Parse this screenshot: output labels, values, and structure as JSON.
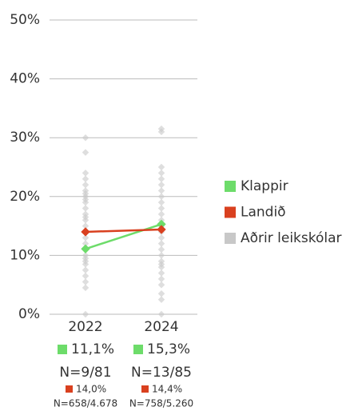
{
  "chart_data": {
    "type": "line",
    "categories": [
      "2022",
      "2024"
    ],
    "ylim": [
      0,
      50
    ],
    "yticks": [
      {
        "value": 0,
        "label": "0%"
      },
      {
        "value": 10,
        "label": "10%"
      },
      {
        "value": 20,
        "label": "20%"
      },
      {
        "value": 30,
        "label": "30%"
      },
      {
        "value": 40,
        "label": "40%"
      },
      {
        "value": 50,
        "label": "50%"
      }
    ],
    "grid": true,
    "legend": "right",
    "series": [
      {
        "name": "Klappir",
        "color": "#6ddc6a",
        "values": [
          11.1,
          15.3
        ],
        "value_labels": [
          "11,1%",
          "15,3%"
        ],
        "n_labels": [
          "N=9/81",
          "N=13/85"
        ]
      },
      {
        "name": "Landið",
        "color": "#d9401f",
        "values": [
          14.0,
          14.4
        ],
        "value_labels": [
          "14,0%",
          "14,4%"
        ],
        "n_labels": [
          "N=658/4.678",
          "N=758/5.260"
        ]
      },
      {
        "name": "Aðrir leikskólar",
        "color": "#c8c8c8",
        "type": "scatter",
        "values": [
          [
            0,
            4.5,
            5.5,
            6.5,
            7.5,
            8.5,
            9,
            9.5,
            10,
            11,
            12,
            13,
            14,
            15,
            16,
            16.5,
            17,
            18,
            19,
            19.5,
            20,
            20.5,
            21,
            22,
            23,
            24,
            27.5,
            30
          ],
          [
            0,
            2.5,
            3.5,
            5,
            6,
            7,
            8,
            8.5,
            9,
            10,
            11,
            12,
            13,
            14,
            15,
            16,
            17,
            18,
            19,
            20,
            21,
            22,
            23,
            24,
            25,
            31,
            31.5
          ]
        ]
      }
    ]
  }
}
